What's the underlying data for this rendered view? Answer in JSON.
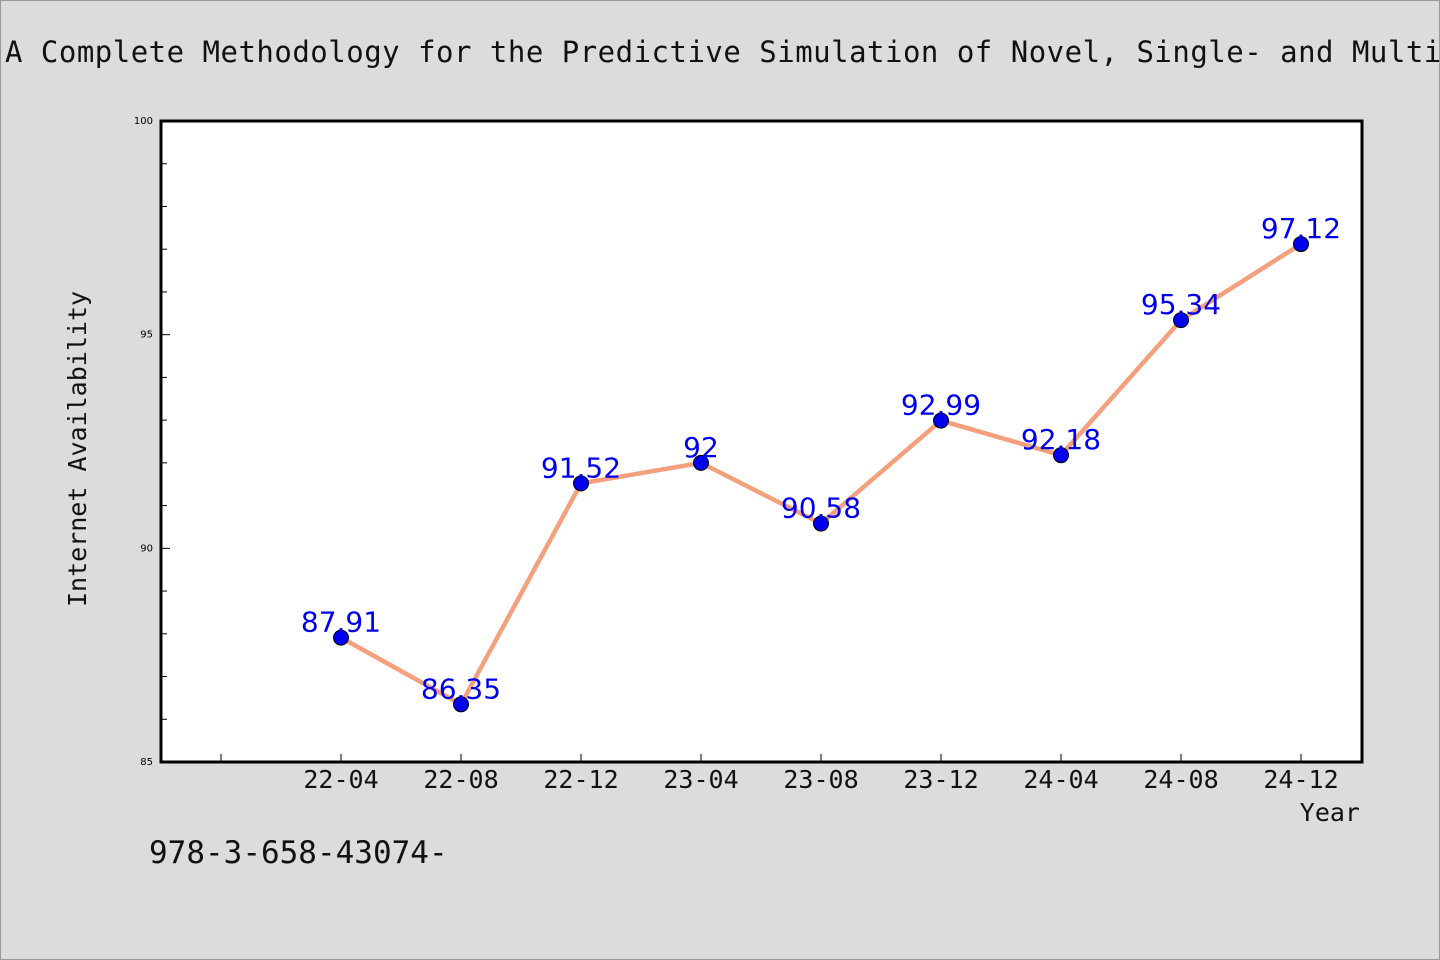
{
  "chart_data": {
    "type": "line",
    "title": "A Complete Methodology for the Predictive Simulation of Novel, Single- and Multi",
    "xlabel": "Year",
    "ylabel": "Internet Availability",
    "categories": [
      "22-04",
      "22-08",
      "22-12",
      "23-04",
      "23-08",
      "23-12",
      "24-04",
      "24-08",
      "24-12"
    ],
    "series": [
      {
        "values": [
          87.91,
          86.35,
          91.52,
          92,
          90.58,
          92.99,
          92.18,
          95.34,
          97.12
        ]
      }
    ],
    "ylim": [
      85,
      100
    ],
    "yticks": [
      85,
      90,
      95,
      100
    ],
    "grid": false,
    "data_labels": [
      "87.91",
      "86.35",
      "91.52",
      "92",
      "90.58",
      "92.99",
      "92.18",
      "95.34",
      "97.12"
    ],
    "colors": {
      "line": "#f4a07c",
      "marker": "#0000ee",
      "label": "#0000ee",
      "background": "#dcdcdc",
      "plot_background": "#ffffff"
    }
  },
  "footer": {
    "isbn": "978-3-658-43074-"
  }
}
